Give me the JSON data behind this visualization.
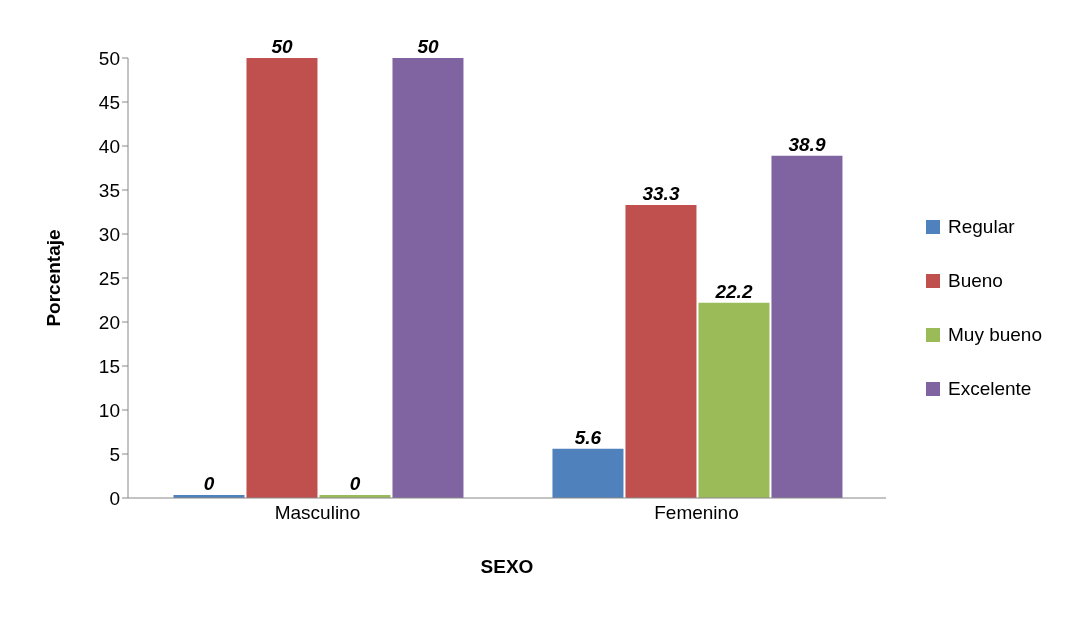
{
  "chart_data": {
    "type": "bar",
    "xlabel": "SEXO",
    "ylabel": "Porcentaje",
    "categories": [
      "Masculino",
      "Femenino"
    ],
    "series": [
      {
        "name": "Regular",
        "color": "#4f81bd",
        "values": [
          0,
          5.6
        ]
      },
      {
        "name": "Bueno",
        "color": "#c0504d",
        "values": [
          50,
          33.3
        ]
      },
      {
        "name": "Muy bueno",
        "color": "#9bbb59",
        "values": [
          0,
          22.2
        ]
      },
      {
        "name": "Excelente",
        "color": "#8064a2",
        "values": [
          50,
          38.9
        ]
      }
    ],
    "ylim": [
      0,
      50
    ],
    "yticks": [
      0,
      5,
      10,
      15,
      20,
      25,
      30,
      35,
      40,
      45,
      50
    ],
    "data_labels": true,
    "legend": "right",
    "grid": false
  }
}
